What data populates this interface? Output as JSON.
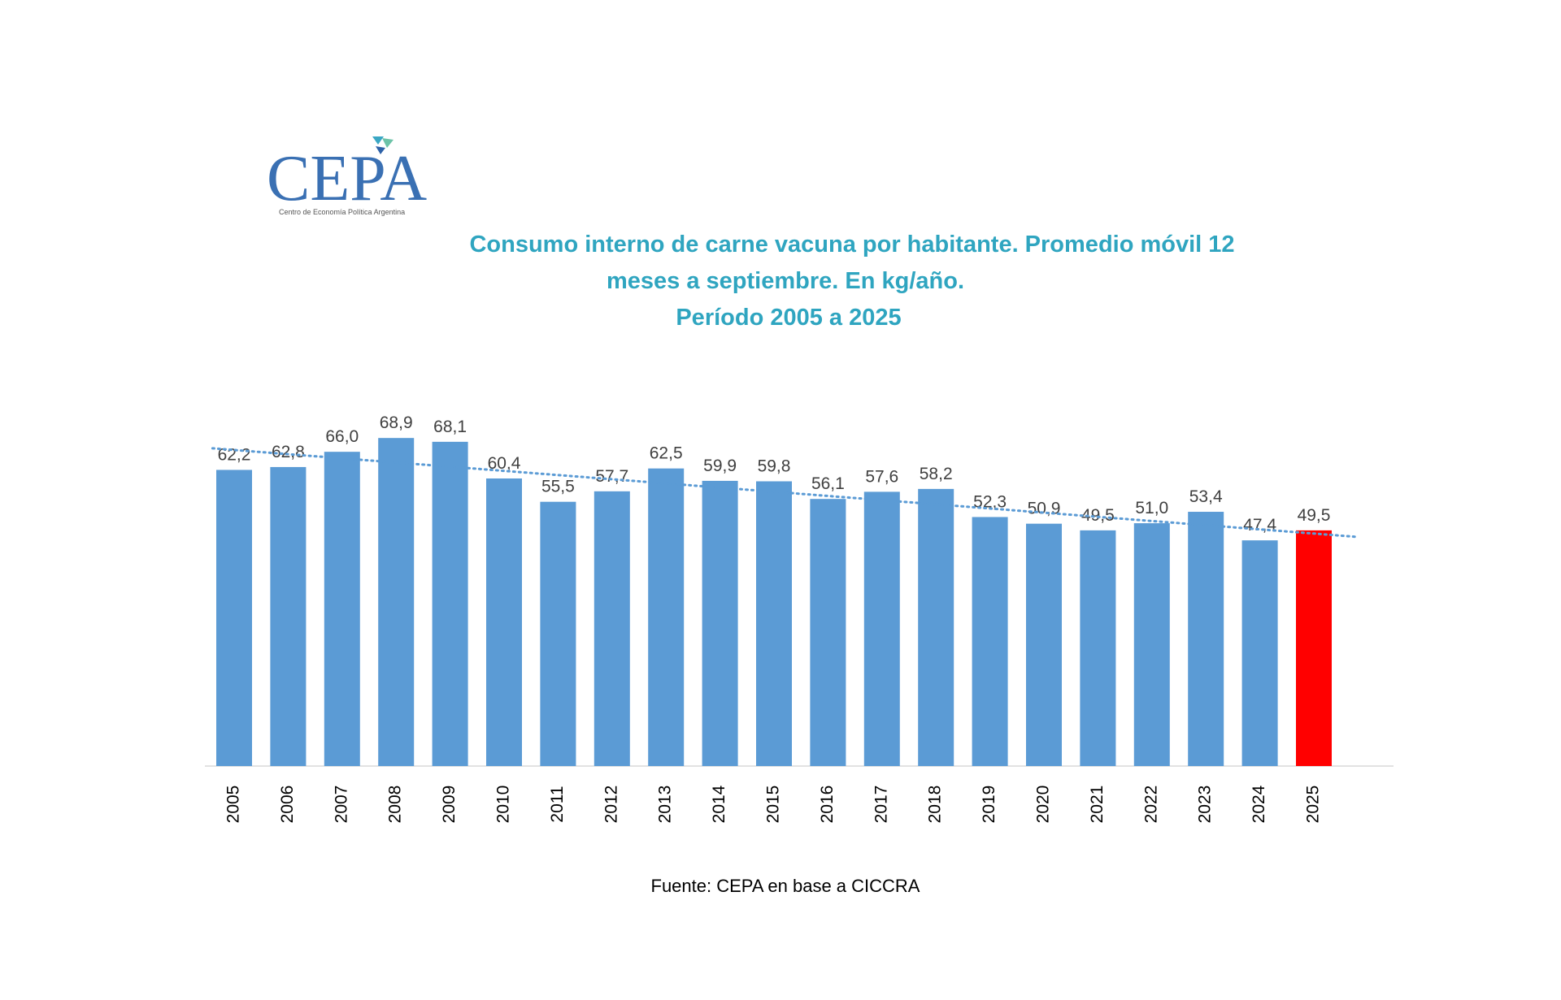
{
  "logo": {
    "text": "CEPA",
    "subtitle": "Centro de Economía Política Argentina"
  },
  "chart_data": {
    "type": "bar",
    "title_lines": [
      "Consumo interno de carne vacuna por habitante. Promedio móvil 12",
      "meses a septiembre. En kg/año.",
      "Período 2005 a 2025"
    ],
    "categories": [
      "2005",
      "2006",
      "2007",
      "2008",
      "2009",
      "2010",
      "2011",
      "2012",
      "2013",
      "2014",
      "2015",
      "2016",
      "2017",
      "2018",
      "2019",
      "2020",
      "2021",
      "2022",
      "2023",
      "2024",
      "2025"
    ],
    "values": [
      62.2,
      62.8,
      66.0,
      68.9,
      68.1,
      60.4,
      55.5,
      57.7,
      62.5,
      59.9,
      59.8,
      56.1,
      57.6,
      58.2,
      52.3,
      50.9,
      49.5,
      51.0,
      53.4,
      47.4,
      49.5
    ],
    "value_labels": [
      "62,2",
      "62,8",
      "66,0",
      "68,9",
      "68,1",
      "60,4",
      "55,5",
      "57,7",
      "62,5",
      "59,9",
      "59,8",
      "56,1",
      "57,6",
      "58,2",
      "52,3",
      "50,9",
      "49,5",
      "51,0",
      "53,4",
      "47,4",
      "49,5"
    ],
    "colors": [
      "#5b9bd5",
      "#5b9bd5",
      "#5b9bd5",
      "#5b9bd5",
      "#5b9bd5",
      "#5b9bd5",
      "#5b9bd5",
      "#5b9bd5",
      "#5b9bd5",
      "#5b9bd5",
      "#5b9bd5",
      "#5b9bd5",
      "#5b9bd5",
      "#5b9bd5",
      "#5b9bd5",
      "#5b9bd5",
      "#5b9bd5",
      "#5b9bd5",
      "#5b9bd5",
      "#5b9bd5",
      "#ff0000"
    ],
    "ylim": [
      0,
      72
    ],
    "trendline": true,
    "source": "Fuente: CEPA en base a CICCRA"
  }
}
